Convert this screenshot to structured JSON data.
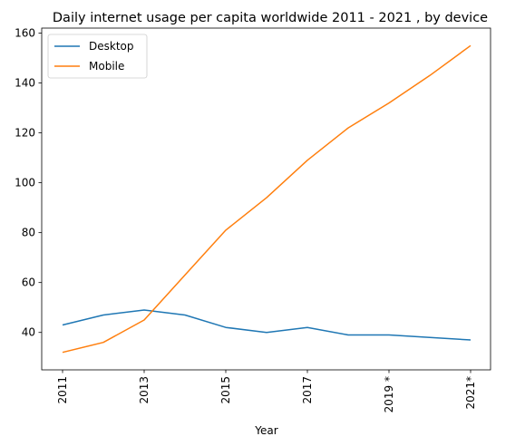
{
  "chart_data": {
    "type": "line",
    "title": "Daily internet usage per capita worldwide 2011 - 2021 , by device",
    "xlabel": "Year",
    "ylabel": "",
    "categories": [
      "2011",
      "2012",
      "2013",
      "2014",
      "2015",
      "2016",
      "2017",
      "2018",
      "2019 *",
      "2020",
      "2021*"
    ],
    "x_tick_labels": [
      "2011",
      "2013",
      "2015",
      "2017",
      "2019 *",
      "2021*"
    ],
    "y_ticks": [
      40,
      60,
      80,
      100,
      120,
      140,
      160
    ],
    "ylim": [
      25,
      162
    ],
    "grid": false,
    "legend_position": "top-left",
    "series": [
      {
        "name": "Desktop",
        "color": "#1f77b4",
        "values": [
          43,
          47,
          49,
          47,
          42,
          40,
          42,
          39,
          39,
          38,
          37
        ]
      },
      {
        "name": "Mobile",
        "color": "#ff7f0e",
        "values": [
          32,
          36,
          45,
          63,
          81,
          94,
          109,
          122,
          132,
          143,
          155
        ]
      }
    ]
  }
}
